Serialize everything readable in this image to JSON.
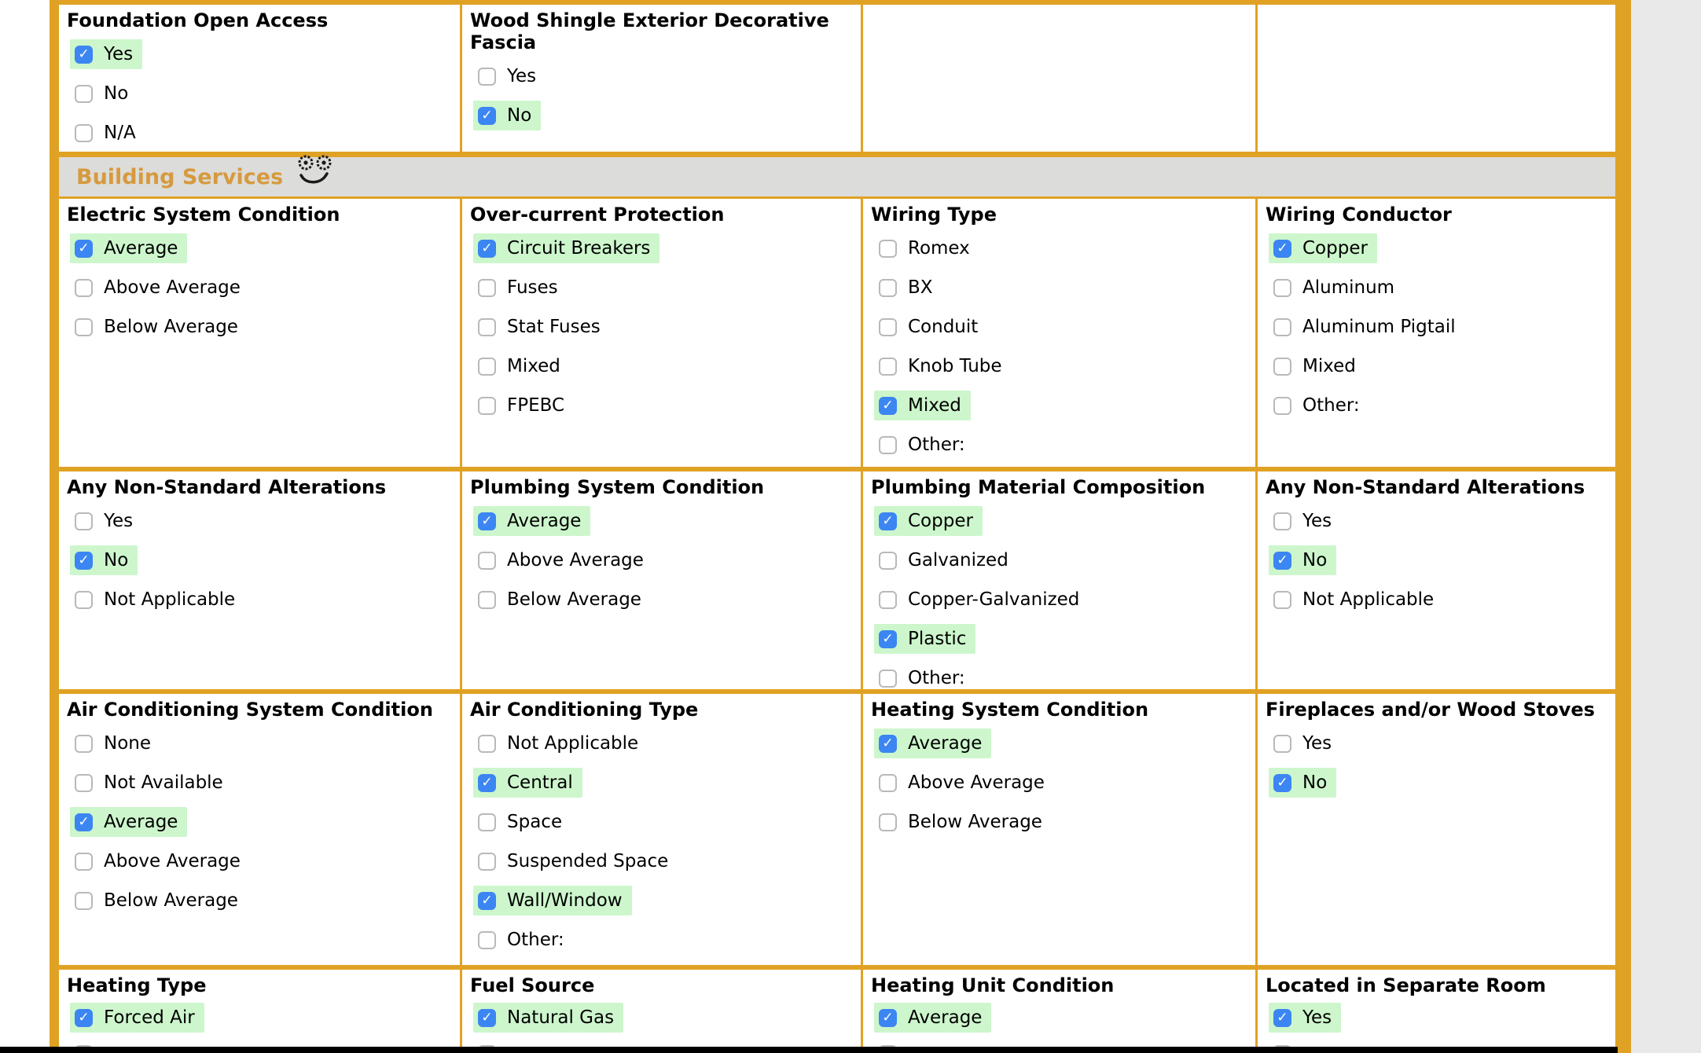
{
  "section": {
    "title": "Building Services",
    "icon": "smiley-face-icon"
  },
  "colors": {
    "table_border_orange": "#E0A225",
    "section_title_orange": "#D69A3E",
    "section_bar_gray": "#DCDCDA",
    "checked_highlight_green": "#CDF6CC",
    "checkbox_blue": "#3B86F2",
    "page_gutter_gray": "#E9E9E9",
    "bottom_strip_black": "#000000"
  },
  "form": {
    "top_rows": [
      {
        "cells": [
          {
            "title": "Foundation Open Access",
            "options": [
              {
                "label": "Yes",
                "checked": true
              },
              {
                "label": "No",
                "checked": false
              },
              {
                "label": "N/A",
                "checked": false
              }
            ]
          },
          {
            "title": "Wood Shingle Exterior Decorative Fascia",
            "options": [
              {
                "label": "Yes",
                "checked": false
              },
              {
                "label": "No",
                "checked": true
              }
            ]
          },
          {
            "title": "",
            "options": []
          },
          {
            "title": "",
            "options": []
          }
        ]
      }
    ],
    "rows": [
      {
        "cells": [
          {
            "title": "Electric System Condition",
            "options": [
              {
                "label": "Average",
                "checked": true
              },
              {
                "label": "Above Average",
                "checked": false
              },
              {
                "label": "Below Average",
                "checked": false
              }
            ]
          },
          {
            "title": "Over-current Protection",
            "options": [
              {
                "label": "Circuit Breakers",
                "checked": true
              },
              {
                "label": "Fuses",
                "checked": false
              },
              {
                "label": "Stat Fuses",
                "checked": false
              },
              {
                "label": "Mixed",
                "checked": false
              },
              {
                "label": "FPEBC",
                "checked": false
              }
            ]
          },
          {
            "title": "Wiring Type",
            "options": [
              {
                "label": "Romex",
                "checked": false
              },
              {
                "label": "BX",
                "checked": false
              },
              {
                "label": "Conduit",
                "checked": false
              },
              {
                "label": "Knob Tube",
                "checked": false
              },
              {
                "label": "Mixed",
                "checked": true
              },
              {
                "label": "Other:",
                "checked": false
              }
            ]
          },
          {
            "title": "Wiring Conductor",
            "options": [
              {
                "label": "Copper",
                "checked": true
              },
              {
                "label": "Aluminum",
                "checked": false
              },
              {
                "label": "Aluminum Pigtail",
                "checked": false
              },
              {
                "label": "Mixed",
                "checked": false
              },
              {
                "label": "Other:",
                "checked": false
              }
            ]
          }
        ]
      },
      {
        "cells": [
          {
            "title": "Any Non-Standard Alterations",
            "options": [
              {
                "label": "Yes",
                "checked": false
              },
              {
                "label": "No",
                "checked": true
              },
              {
                "label": "Not Applicable",
                "checked": false
              }
            ]
          },
          {
            "title": "Plumbing System Condition",
            "options": [
              {
                "label": "Average",
                "checked": true
              },
              {
                "label": "Above Average",
                "checked": false
              },
              {
                "label": "Below Average",
                "checked": false
              }
            ]
          },
          {
            "title": "Plumbing Material Composition",
            "options": [
              {
                "label": "Copper",
                "checked": true
              },
              {
                "label": "Galvanized",
                "checked": false
              },
              {
                "label": "Copper-Galvanized",
                "checked": false
              },
              {
                "label": "Plastic",
                "checked": true
              },
              {
                "label": "Other:",
                "checked": false
              }
            ]
          },
          {
            "title": "Any Non-Standard Alterations",
            "options": [
              {
                "label": "Yes",
                "checked": false
              },
              {
                "label": "No",
                "checked": true
              },
              {
                "label": "Not Applicable",
                "checked": false
              }
            ]
          }
        ]
      },
      {
        "cells": [
          {
            "title": "Air Conditioning System Condition",
            "options": [
              {
                "label": "None",
                "checked": false
              },
              {
                "label": "Not Available",
                "checked": false
              },
              {
                "label": "Average",
                "checked": true
              },
              {
                "label": "Above Average",
                "checked": false
              },
              {
                "label": "Below Average",
                "checked": false
              }
            ]
          },
          {
            "title": "Air Conditioning Type",
            "options": [
              {
                "label": "Not Applicable",
                "checked": false
              },
              {
                "label": "Central",
                "checked": true
              },
              {
                "label": "Space",
                "checked": false
              },
              {
                "label": "Suspended Space",
                "checked": false
              },
              {
                "label": "Wall/Window",
                "checked": true
              },
              {
                "label": "Other:",
                "checked": false
              }
            ]
          },
          {
            "title": "Heating System Condition",
            "options": [
              {
                "label": "Average",
                "checked": true
              },
              {
                "label": "Above Average",
                "checked": false
              },
              {
                "label": "Below Average",
                "checked": false
              }
            ]
          },
          {
            "title": "Fireplaces and/or Wood Stoves",
            "options": [
              {
                "label": "Yes",
                "checked": false
              },
              {
                "label": "No",
                "checked": true
              }
            ]
          }
        ]
      },
      {
        "cells": [
          {
            "title": "Heating Type",
            "options": [
              {
                "label": "Forced Air",
                "checked": true
              }
            ],
            "partial_option": true
          },
          {
            "title": "Fuel Source",
            "options": [
              {
                "label": "Natural Gas",
                "checked": true
              }
            ],
            "partial_option": true
          },
          {
            "title": "Heating Unit Condition",
            "options": [
              {
                "label": "Average",
                "checked": true
              }
            ],
            "partial_option": true
          },
          {
            "title": "Located in Separate Room",
            "options": [
              {
                "label": "Yes",
                "checked": true
              }
            ],
            "partial_option": true
          }
        ]
      }
    ]
  }
}
